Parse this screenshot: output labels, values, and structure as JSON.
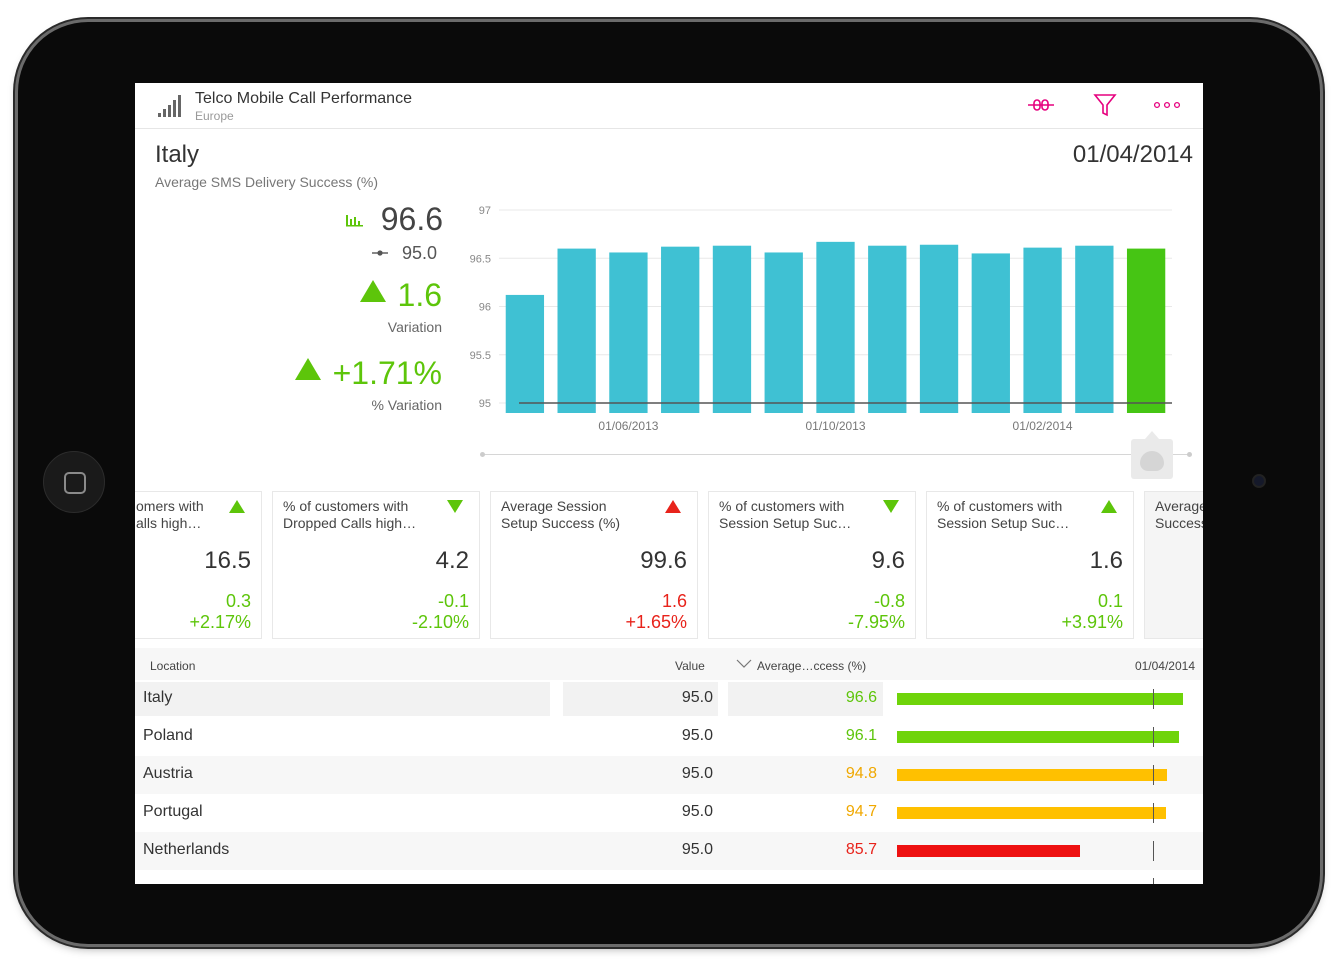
{
  "header": {
    "title": "Telco Mobile Call Performance",
    "subtitle": "Europe",
    "icons": [
      "signal-bars-icon",
      "link-icon",
      "filter-icon",
      "more-icon"
    ]
  },
  "kpi": {
    "country": "Italy",
    "metric": "Average SMS Delivery Success (%)",
    "date": "01/04/2014",
    "value": "96.6",
    "target": "95.0",
    "variation": "1.6",
    "variation_label": "Variation",
    "pct_variation": "+1.71%",
    "pct_variation_label": "% Variation"
  },
  "chart_data": {
    "type": "bar",
    "categories": [
      "2013-04",
      "2013-05",
      "2013-06",
      "2013-07",
      "2013-08",
      "2013-09",
      "2013-10",
      "2013-11",
      "2013-12",
      "2014-01",
      "2014-02",
      "2014-03",
      "2014-04"
    ],
    "values": [
      96.12,
      96.6,
      96.56,
      96.62,
      96.63,
      96.56,
      96.67,
      96.63,
      96.64,
      96.55,
      96.61,
      96.63,
      96.6
    ],
    "target": 95.0,
    "ylim": [
      95,
      97
    ],
    "yticks": [
      "95",
      "95.5",
      "96",
      "96.5",
      "97"
    ],
    "xtick_labels": [
      "01/06/2013",
      "01/10/2013",
      "01/02/2014"
    ],
    "colors": {
      "bar": "#3fc1d3",
      "selected": "#46c514",
      "target": "#555555"
    }
  },
  "tiles": [
    {
      "line1": "% of customers with",
      "line2": "Dropped Calls high…",
      "value": "16.5",
      "var": "0.3",
      "pct": "+2.17%",
      "trend": "up-green",
      "var_color": "green",
      "partial_title": [
        "omers with",
        "alls high…"
      ]
    },
    {
      "line1": "% of customers with",
      "line2": "Dropped Calls high…",
      "value": "4.2",
      "var": "-0.1",
      "pct": "-2.10%",
      "trend": "down-green",
      "var_color": "green"
    },
    {
      "line1": "Average Session",
      "line2": "Setup Success (%)",
      "value": "99.6",
      "var": "1.6",
      "pct": "+1.65%",
      "trend": "up-red",
      "var_color": "red"
    },
    {
      "line1": "% of customers with",
      "line2": "Session Setup Suc…",
      "value": "9.6",
      "var": "-0.8",
      "pct": "-7.95%",
      "trend": "down-green",
      "var_color": "green"
    },
    {
      "line1": "% of customers with",
      "line2": "Session Setup Suc…",
      "value": "1.6",
      "var": "0.1",
      "pct": "+3.91%",
      "trend": "up-green",
      "var_color": "green"
    },
    {
      "line1": "Average",
      "line2": "Success"
    }
  ],
  "table": {
    "headers": {
      "location": "Location",
      "value": "Value",
      "avg": "Average…ccess (%)",
      "date": "01/04/2014"
    },
    "rows": [
      {
        "location": "Italy",
        "value": "95.0",
        "avg": "96.6",
        "fill": 0.268,
        "color": "#6fd40a"
      },
      {
        "location": "Poland",
        "value": "95.0",
        "avg": "96.1",
        "fill": 0.264,
        "color": "#6fd40a"
      },
      {
        "location": "Austria",
        "value": "95.0",
        "avg": "94.8",
        "fill": 0.253,
        "color": "#ffc000"
      },
      {
        "location": "Portugal",
        "value": "95.0",
        "avg": "94.7",
        "fill": 0.252,
        "color": "#ffc000"
      },
      {
        "location": "Netherlands",
        "value": "95.0",
        "avg": "85.7",
        "fill": 0.171,
        "color": "#ee1111"
      }
    ]
  }
}
